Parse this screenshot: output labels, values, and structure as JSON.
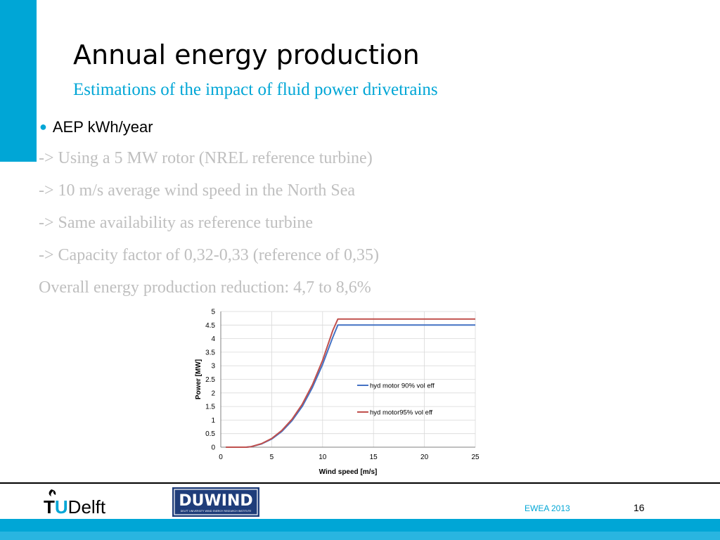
{
  "slide": {
    "title": "Annual energy production",
    "subtitle": "Estimations of the impact of fluid power drivetrains",
    "bullet": "AEP  kWh/year",
    "lines": [
      "-> Using a 5 MW rotor (NREL reference turbine)",
      "-> 10 m/s average wind speed in the North Sea",
      "-> Same availability as reference turbine",
      "-> Capacity factor of 0,32-0,33  (reference of 0,35)",
      "Overall energy production reduction: 4,7 to 8,6%"
    ]
  },
  "footer": {
    "logo_tudelft": "TUDelft",
    "logo_duwind": "DUWIND",
    "logo_duwind_sub": "DELFT UNIVERSITY WIND ENERGY RESEARCH INSTITUTE",
    "conference": "EWEA 2013",
    "page_number": "16"
  },
  "colors": {
    "accent": "#00A6D6",
    "series_blue": "#4472C4",
    "series_red": "#C0504D"
  },
  "chart_data": {
    "type": "line",
    "xlabel": "Wind speed [m/s]",
    "ylabel": "Power [MW]",
    "xlim": [
      0,
      25
    ],
    "ylim": [
      0,
      5
    ],
    "xticks": [
      "0",
      "5",
      "10",
      "15",
      "20",
      "25"
    ],
    "yticks": [
      "0",
      "0.5",
      "1",
      "1.5",
      "2",
      "2.5",
      "3",
      "3.5",
      "4",
      "4.5",
      "5"
    ],
    "grid": true,
    "legend_position": "center-right",
    "series": [
      {
        "name": "hyd motor 90% vol eff",
        "color": "#4472C4",
        "x": [
          0.5,
          2.5,
          3,
          4,
          5,
          6,
          7,
          8,
          9,
          10,
          11,
          11.5,
          25
        ],
        "y": [
          0,
          0,
          0.02,
          0.12,
          0.3,
          0.58,
          0.98,
          1.5,
          2.2,
          3.05,
          4.05,
          4.5,
          4.5
        ]
      },
      {
        "name": "hyd motor95% vol eff",
        "color": "#C0504D",
        "x": [
          0.5,
          2.5,
          3,
          4,
          5,
          6,
          7,
          8,
          9,
          10,
          11,
          11.5,
          25
        ],
        "y": [
          0,
          0,
          0.02,
          0.13,
          0.32,
          0.62,
          1.03,
          1.58,
          2.3,
          3.2,
          4.3,
          4.72,
          4.72
        ]
      }
    ]
  }
}
